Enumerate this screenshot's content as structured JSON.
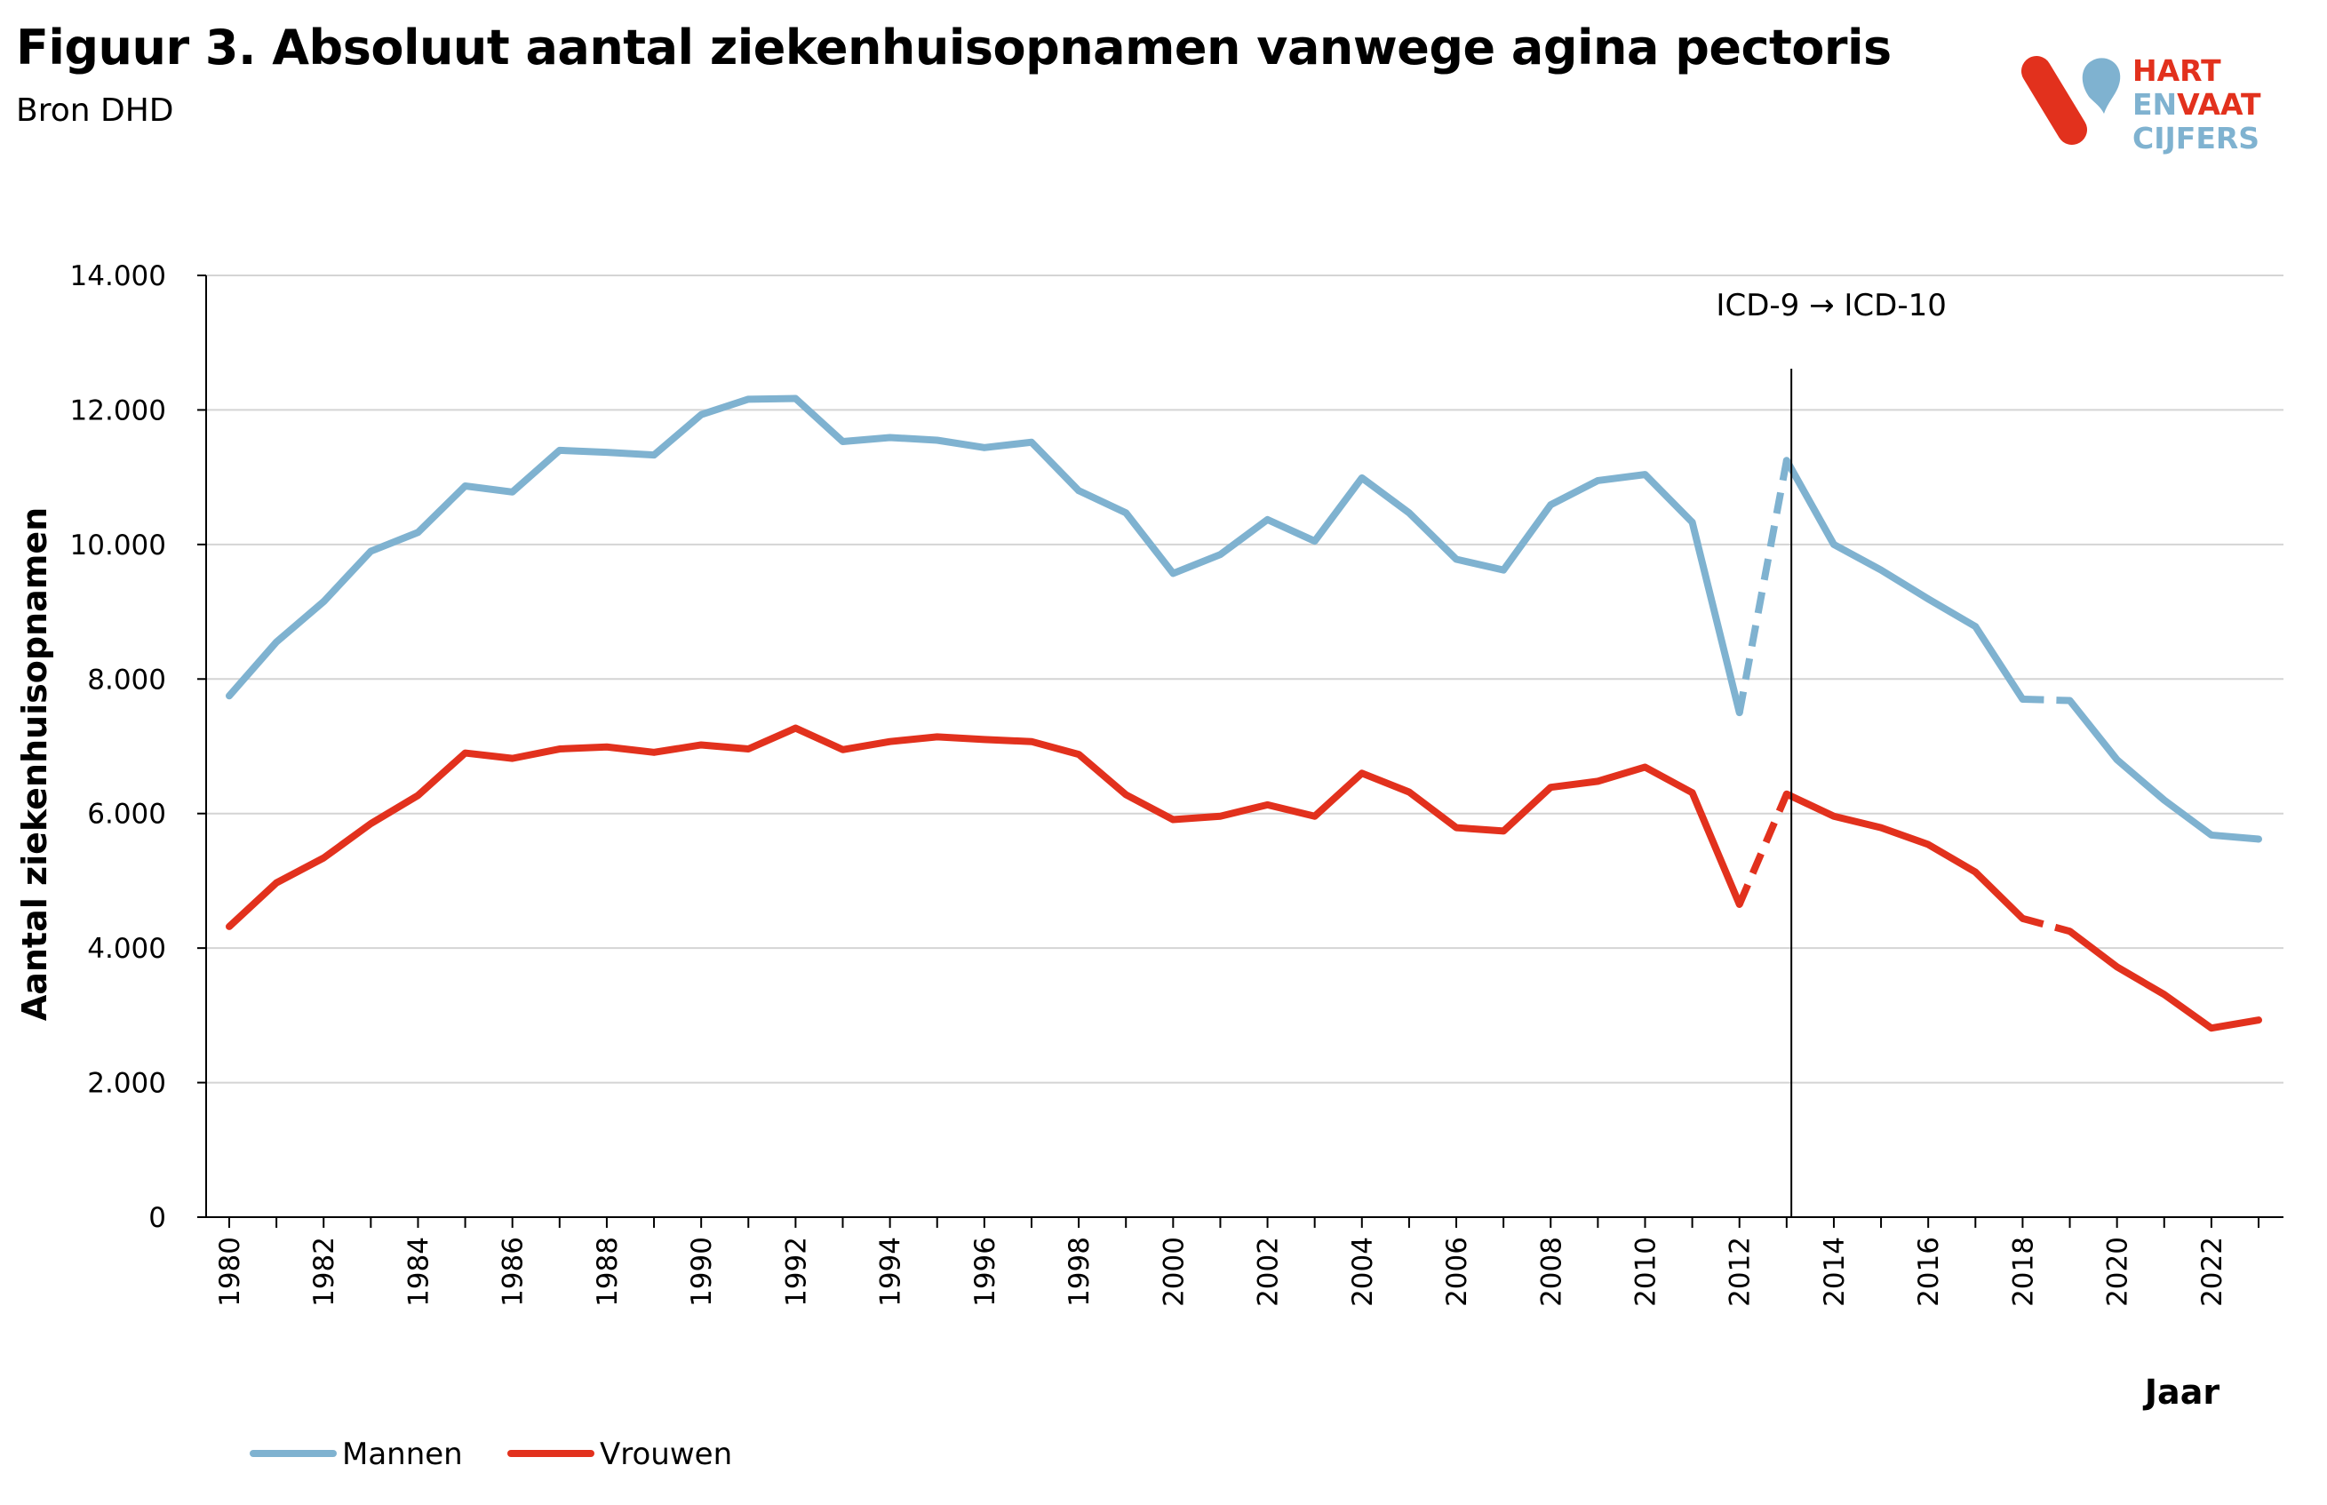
{
  "header": {
    "title": "Figuur 3. Absoluut aantal ziekenhuisopnamen vanwege agina pectoris",
    "subtitle": "Bron DHD"
  },
  "logo": {
    "line1": "HART",
    "line2a": "EN",
    "line2b": "VAAT",
    "line3": "CIJFERS",
    "colors": {
      "red": "#e2311d",
      "blue": "#7fb2d0"
    }
  },
  "chart_data": {
    "type": "line",
    "ylabel": "Aantal ziekenhuisopnamen",
    "xlabel": "Jaar",
    "ylim": [
      0,
      14000
    ],
    "yticks": [
      0,
      2000,
      4000,
      6000,
      8000,
      10000,
      12000,
      14000
    ],
    "ytick_labels": [
      "0",
      "2.000",
      "4.000",
      "6.000",
      "8.000",
      "10.000",
      "12.000",
      "14.000"
    ],
    "xlim": [
      1979.5,
      2023.5
    ],
    "xtick_labels": [
      "1980",
      "1982",
      "1984",
      "1986",
      "1988",
      "1990",
      "1992",
      "1994",
      "1996",
      "1998",
      "2000",
      "2002",
      "2004",
      "2006",
      "2008",
      "2010",
      "2012",
      "2014",
      "2016",
      "2018",
      "2020",
      "2022"
    ],
    "grid": "horizontal",
    "legend_position": "bottom-left",
    "annotation": {
      "x": 2013.1,
      "text": "ICD-9 → ICD-10"
    },
    "x": [
      1980,
      1981,
      1982,
      1983,
      1984,
      1985,
      1986,
      1987,
      1988,
      1989,
      1990,
      1991,
      1992,
      1993,
      1994,
      1995,
      1996,
      1997,
      1998,
      1999,
      2000,
      2001,
      2002,
      2003,
      2004,
      2005,
      2006,
      2007,
      2008,
      2009,
      2010,
      2011,
      2012,
      2013,
      2014,
      2015,
      2016,
      2017,
      2018,
      2019,
      2020,
      2021,
      2022,
      2023
    ],
    "dashed_segments": [
      [
        2012,
        2013
      ],
      [
        2018,
        2019
      ]
    ],
    "series": [
      {
        "name": "Mannen",
        "color": "#7fb2d0",
        "values": [
          7750,
          8550,
          9150,
          9900,
          10180,
          10870,
          10780,
          11400,
          11370,
          11330,
          11930,
          12160,
          12170,
          11530,
          11590,
          11550,
          11440,
          11520,
          10800,
          10470,
          9570,
          9850,
          10370,
          10050,
          10990,
          10470,
          9780,
          9620,
          10590,
          10950,
          11040,
          10330,
          7500,
          11250,
          10000,
          9620,
          9190,
          8780,
          7700,
          7680,
          6800,
          6200,
          5680,
          5620
        ]
      },
      {
        "name": "Vrouwen",
        "color": "#e2311d",
        "values": [
          4320,
          4970,
          5340,
          5850,
          6270,
          6900,
          6820,
          6960,
          6990,
          6910,
          7020,
          6960,
          7270,
          6950,
          7070,
          7140,
          7100,
          7070,
          6880,
          6280,
          5910,
          5960,
          6130,
          5960,
          6600,
          6320,
          5790,
          5740,
          6390,
          6480,
          6690,
          6310,
          4650,
          6290,
          5960,
          5790,
          5540,
          5130,
          4440,
          4250,
          3720,
          3310,
          2810,
          2930
        ]
      }
    ]
  }
}
